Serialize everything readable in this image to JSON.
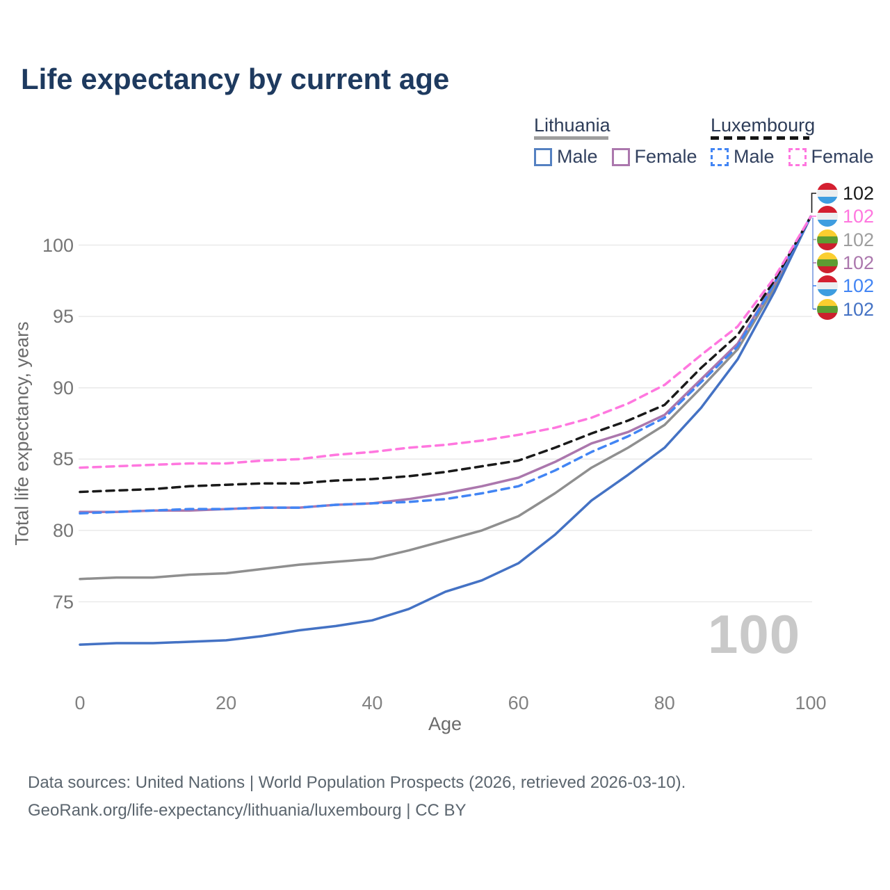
{
  "title": "Life expectancy by current age",
  "legend": {
    "groups": [
      {
        "country": "Lithuania",
        "style": "solid",
        "male_label": "Male",
        "female_label": "Female"
      },
      {
        "country": "Luxembourg",
        "style": "dashed",
        "male_label": "Male",
        "female_label": "Female"
      }
    ]
  },
  "axis": {
    "x_label": "Age",
    "y_label": "Total life expectancy, years",
    "x_ticks": [
      0,
      20,
      40,
      60,
      80,
      100
    ],
    "y_ticks": [
      75,
      80,
      85,
      90,
      95,
      100
    ]
  },
  "age_counter": "100",
  "colors": {
    "title": "#1e3a5f",
    "lithuania_male": "#4472c4",
    "lithuania_female": "#ab77ad",
    "lithuania_total": "#8f8f8f",
    "luxembourg_male": "#4285f4",
    "luxembourg_female": "#ff77df",
    "luxembourg_total": "#1a1a1a",
    "gridline": "#e9e9e9",
    "watermark": "#c9c9c9"
  },
  "flags": {
    "lithuania": {
      "stripes": [
        "#fbce2f",
        "#5d9c32",
        "#cc1f2e"
      ]
    },
    "luxembourg": {
      "stripes": [
        "#d41f30",
        "#ebeef0",
        "#3e9de0"
      ]
    }
  },
  "end_labels": [
    {
      "country": "luxembourg",
      "value": "102",
      "color": "#1a1a1a"
    },
    {
      "country": "luxembourg",
      "value": "102",
      "color": "#ff77df"
    },
    {
      "country": "lithuania",
      "value": "102",
      "color": "#9e9e9e"
    },
    {
      "country": "lithuania",
      "value": "102",
      "color": "#ab77ad"
    },
    {
      "country": "luxembourg",
      "value": "102",
      "color": "#4285f4"
    },
    {
      "country": "lithuania",
      "value": "102",
      "color": "#4472c4"
    }
  ],
  "chart_data": {
    "type": "line",
    "title": "Life expectancy by current age",
    "xlabel": "Age",
    "ylabel": "Total life expectancy, years",
    "x_range": [
      0,
      100
    ],
    "y_ticks": [
      75,
      80,
      85,
      90,
      95,
      100
    ],
    "grid": true,
    "legend_position": "top-right",
    "x": [
      0,
      5,
      10,
      15,
      20,
      25,
      30,
      35,
      40,
      45,
      50,
      55,
      60,
      65,
      70,
      75,
      80,
      85,
      90,
      95,
      100
    ],
    "series": [
      {
        "name": "Lithuania Total",
        "color": "#8f8f8f",
        "dash": false,
        "values": [
          76.6,
          76.7,
          76.7,
          76.9,
          77.0,
          77.3,
          77.6,
          77.8,
          78.0,
          78.6,
          79.3,
          80.0,
          81.0,
          82.6,
          84.4,
          85.8,
          87.4,
          90.0,
          92.7,
          97.0,
          102
        ]
      },
      {
        "name": "Lithuania Female",
        "color": "#ab77ad",
        "dash": false,
        "values": [
          81.3,
          81.3,
          81.4,
          81.4,
          81.5,
          81.6,
          81.6,
          81.8,
          81.9,
          82.2,
          82.6,
          83.1,
          83.7,
          84.8,
          86.1,
          86.9,
          88.1,
          90.6,
          93.1,
          97.3,
          102
        ]
      },
      {
        "name": "Lithuania Male",
        "color": "#4472c4",
        "dash": false,
        "values": [
          72.0,
          72.1,
          72.1,
          72.2,
          72.3,
          72.6,
          73.0,
          73.3,
          73.7,
          74.5,
          75.7,
          76.5,
          77.7,
          79.7,
          82.1,
          83.9,
          85.8,
          88.6,
          92.0,
          96.7,
          102
        ]
      },
      {
        "name": "Luxembourg Male",
        "color": "#4285f4",
        "dash": true,
        "values": [
          81.2,
          81.3,
          81.4,
          81.5,
          81.5,
          81.6,
          81.6,
          81.8,
          81.9,
          82.0,
          82.2,
          82.6,
          83.1,
          84.2,
          85.5,
          86.6,
          87.9,
          90.4,
          92.9,
          97.3,
          102
        ]
      },
      {
        "name": "Luxembourg Total",
        "color": "#1a1a1a",
        "dash": true,
        "values": [
          82.7,
          82.8,
          82.9,
          83.1,
          83.2,
          83.3,
          83.3,
          83.5,
          83.6,
          83.8,
          84.1,
          84.5,
          84.9,
          85.8,
          86.8,
          87.7,
          88.8,
          91.4,
          93.7,
          97.5,
          102
        ]
      },
      {
        "name": "Luxembourg Female",
        "color": "#ff77df",
        "dash": true,
        "values": [
          84.4,
          84.5,
          84.6,
          84.7,
          84.7,
          84.9,
          85.0,
          85.3,
          85.5,
          85.8,
          86.0,
          86.3,
          86.7,
          87.2,
          87.9,
          88.9,
          90.2,
          92.3,
          94.3,
          97.7,
          102
        ]
      }
    ],
    "end_value": 102
  },
  "footer": {
    "line1": "Data sources: United Nations | World Population Prospects (2026, retrieved 2026-03-10).",
    "line2": "GeoRank.org/life-expectancy/lithuania/luxembourg | CC BY"
  }
}
